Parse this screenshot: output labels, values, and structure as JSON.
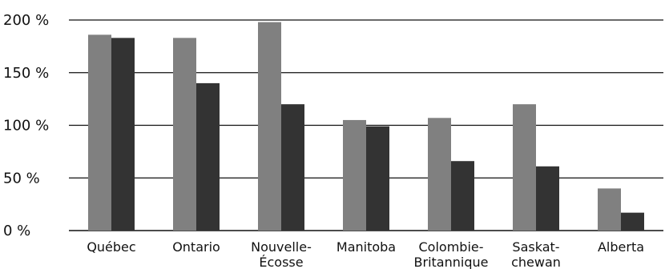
{
  "chart_data": {
    "type": "bar",
    "categories": [
      [
        "Québec"
      ],
      [
        "Ontario"
      ],
      [
        "Nouvelle-",
        "Écosse"
      ],
      [
        "Manitoba"
      ],
      [
        "Colombie-",
        "Britannique"
      ],
      [
        "Saskat-",
        "chewan"
      ],
      [
        "Alberta"
      ]
    ],
    "series": [
      {
        "values": [
          186,
          183,
          198,
          105,
          107,
          120,
          40
        ],
        "color": "#808080"
      },
      {
        "values": [
          183,
          140,
          120,
          99,
          66,
          61,
          17
        ],
        "color": "#333333"
      }
    ],
    "y_ticks": [
      {
        "value": 0,
        "label": "0 %"
      },
      {
        "value": 50,
        "label": "50 %"
      },
      {
        "value": 100,
        "label": "100 %"
      },
      {
        "value": 150,
        "label": "150 %"
      },
      {
        "value": 200,
        "label": "200 %"
      }
    ],
    "ylim": [
      0,
      200
    ],
    "grid": true,
    "gridline_color": "#111111"
  }
}
